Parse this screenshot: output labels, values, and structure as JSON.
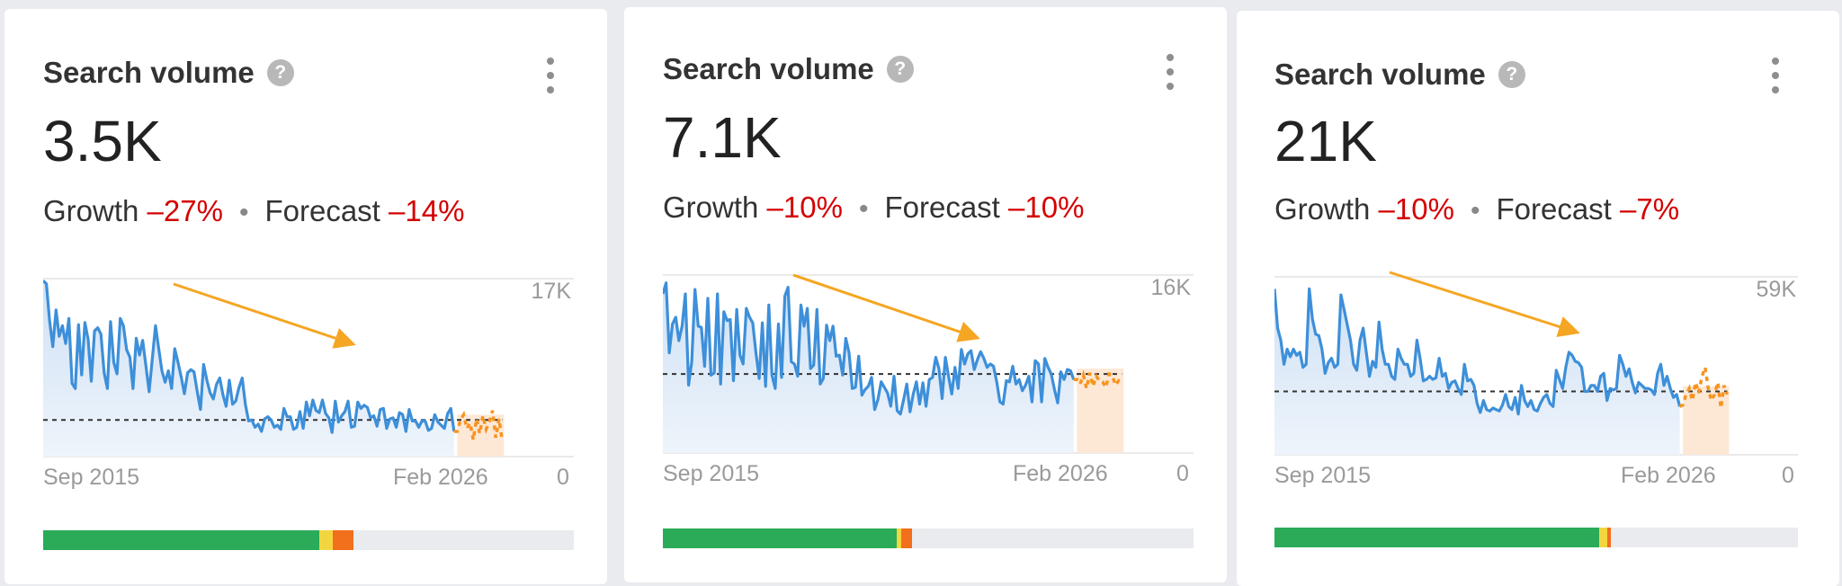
{
  "colors": {
    "line": "#3d8fd9",
    "area_top": "#cfe1f5",
    "area_bottom": "#eef4fb",
    "forecast_line": "#f7931e",
    "forecast_area": "#fde8d6",
    "trend_arrow": "#f5a623",
    "avg_line": "#333333",
    "grid": "#e3e3e3",
    "bar_green": "#2bab58",
    "bar_yellow": "#f3d63f",
    "bar_orange": "#f26f1c",
    "bar_bg": "#e9ebee"
  },
  "cards": [
    {
      "title": "Search volume",
      "help_icon": "?",
      "volume": "3.5K",
      "growth_label": "Growth",
      "growth_value": "–27%",
      "separator": "•",
      "forecast_label": "Forecast",
      "forecast_value": "–14%",
      "date_start": "Sep 2015",
      "date_end": "Feb 2026",
      "y_max_label": "17K",
      "y_min_label": "0",
      "intent_bar": [
        {
          "color": "green",
          "fraction": 0.52
        },
        {
          "color": "yellow",
          "fraction": 0.025
        },
        {
          "color": "orange",
          "fraction": 0.04
        }
      ]
    },
    {
      "title": "Search volume",
      "help_icon": "?",
      "volume": "7.1K",
      "growth_label": "Growth",
      "growth_value": "–10%",
      "separator": "•",
      "forecast_label": "Forecast",
      "forecast_value": "–10%",
      "date_start": "Sep 2015",
      "date_end": "Feb 2026",
      "y_max_label": "16K",
      "y_min_label": "0",
      "intent_bar": [
        {
          "color": "green",
          "fraction": 0.44
        },
        {
          "color": "yellow",
          "fraction": 0.01
        },
        {
          "color": "orange",
          "fraction": 0.02
        }
      ]
    },
    {
      "title": "Search volume",
      "help_icon": "?",
      "volume": "21K",
      "growth_label": "Growth",
      "growth_value": "–10%",
      "separator": "•",
      "forecast_label": "Forecast",
      "forecast_value": "–7%",
      "date_start": "Sep 2015",
      "date_end": "Feb 2026",
      "y_max_label": "59K",
      "y_min_label": "0",
      "intent_bar": [
        {
          "color": "green",
          "fraction": 0.62
        },
        {
          "color": "yellow",
          "fraction": 0.015
        },
        {
          "color": "orange",
          "fraction": 0.008
        }
      ]
    }
  ],
  "chart_data": [
    {
      "type": "area",
      "title": "Search volume",
      "x_start": "Sep 2015",
      "x_end": "Feb 2026",
      "ylim": [
        0,
        17000
      ],
      "y_tick_labels": [
        "0",
        "17K"
      ],
      "average": 3500,
      "grid": true,
      "series": [
        {
          "values": [
            16800,
            16500,
            13000,
            10500,
            14000,
            11500,
            12500,
            10800,
            13200,
            7000,
            6500,
            12600,
            7800,
            12800,
            11200,
            7200,
            12000,
            12300,
            11700,
            8000,
            6500,
            12900,
            9000,
            7900,
            13200,
            12500,
            10200,
            9500,
            6500,
            11300,
            9700,
            11100,
            8700,
            6200,
            9300,
            12500,
            10300,
            8200,
            7100,
            8200,
            6500,
            10300,
            9000,
            7600,
            6000,
            8000,
            8300,
            8100,
            6200,
            4500,
            8800,
            7300,
            6100,
            5500,
            6900,
            7500,
            5900,
            4800,
            7300,
            5000,
            5300,
            6600,
            7500,
            5000,
            3400,
            3500,
            2800,
            3100,
            2400,
            3600,
            3800,
            3500,
            2800,
            3000,
            2600,
            4600,
            3800,
            3800,
            2600,
            2800,
            4300,
            2700,
            5200,
            3900,
            5400,
            4400,
            4200,
            5400,
            4100,
            3700,
            2300,
            5300,
            3300,
            3900,
            4300,
            5300,
            2800,
            2900,
            5200,
            4600,
            4900,
            4700,
            3700,
            3900,
            2900,
            4500,
            4600,
            2700,
            3600,
            3700,
            2800,
            4200,
            4000,
            2400,
            4500,
            3400,
            3400,
            2800,
            3400,
            3400,
            2500,
            2700,
            4000,
            3300,
            3000,
            2700,
            4100,
            4600,
            2400
          ]
        },
        {
          "name": "forecast",
          "values": [
            2400,
            3500,
            4000,
            2700,
            3200,
            1600,
            3600,
            2200,
            3900,
            2600,
            3300,
            4400,
            1800,
            3600,
            1500
          ]
        }
      ]
    },
    {
      "type": "area",
      "title": "Search volume",
      "x_start": "Sep 2015",
      "x_end": "Feb 2026",
      "ylim": [
        0,
        16000
      ],
      "y_tick_labels": [
        "0",
        "16K"
      ],
      "average": 7100,
      "grid": true,
      "series": [
        {
          "values": [
            14300,
            15300,
            9000,
            11600,
            12200,
            10100,
            11400,
            14300,
            6100,
            8200,
            14700,
            11400,
            11300,
            7800,
            13900,
            7000,
            7200,
            14300,
            6200,
            12700,
            11900,
            12000,
            6500,
            12900,
            8800,
            8000,
            13000,
            12200,
            11700,
            9000,
            6700,
            11700,
            6000,
            13300,
            7000,
            5800,
            11600,
            6800,
            14100,
            14900,
            8200,
            8000,
            6900,
            13300,
            11400,
            13000,
            7600,
            7900,
            12900,
            6200,
            6700,
            11500,
            10100,
            11400,
            8700,
            8800,
            7000,
            10300,
            9000,
            5800,
            5900,
            8700,
            5200,
            5700,
            6000,
            6800,
            3900,
            4800,
            6400,
            5900,
            5400,
            4200,
            6900,
            3800,
            3500,
            4800,
            6200,
            3700,
            5300,
            6400,
            4400,
            6300,
            4200,
            6600,
            6800,
            8600,
            7600,
            4900,
            8600,
            6900,
            5300,
            7700,
            5800,
            9300,
            8000,
            8900,
            9200,
            7500,
            8400,
            9100,
            8500,
            7700,
            8000,
            7800,
            6400,
            4600,
            4400,
            6500,
            6400,
            7800,
            6200,
            6600,
            5600,
            6100,
            6900,
            4600,
            8300,
            8000,
            4600,
            8500,
            7700,
            7100,
            5700,
            4500,
            7300,
            6600,
            7500,
            7400,
            6600
          ]
        },
        {
          "name": "forecast",
          "values": [
            6600,
            6200,
            7000,
            5800,
            7200,
            6000,
            6900,
            6500,
            6400,
            5900,
            7100,
            7000,
            6100,
            6500,
            6300
          ]
        }
      ]
    },
    {
      "type": "area",
      "title": "Search volume",
      "x_start": "Sep 2015",
      "x_end": "Feb 2026",
      "ylim": [
        0,
        59000
      ],
      "y_tick_labels": [
        "0",
        "59K"
      ],
      "average": 21000,
      "grid": true,
      "series": [
        {
          "values": [
            55000,
            42000,
            38000,
            30000,
            35000,
            32500,
            35000,
            33000,
            34000,
            29000,
            30000,
            55000,
            45000,
            40000,
            39500,
            35000,
            27000,
            30500,
            32000,
            29000,
            30000,
            53000,
            48000,
            43000,
            38000,
            30000,
            28000,
            38000,
            42000,
            34000,
            26000,
            31000,
            29000,
            44000,
            35000,
            30000,
            30000,
            26000,
            25000,
            35000,
            32000,
            30000,
            30000,
            26000,
            27000,
            38000,
            32000,
            24500,
            25000,
            26000,
            25000,
            25500,
            32000,
            26000,
            27000,
            22000,
            24000,
            24500,
            22000,
            20000,
            30000,
            24500,
            25000,
            23000,
            17000,
            14000,
            18000,
            15000,
            14500,
            15500,
            15000,
            14500,
            16500,
            20000,
            16000,
            15000,
            19000,
            13500,
            23000,
            18000,
            16000,
            18000,
            15000,
            14500,
            17000,
            19000,
            20000,
            17000,
            16000,
            28000,
            25000,
            22000,
            29000,
            34000,
            33000,
            31000,
            30500,
            29000,
            21000,
            21000,
            23000,
            23000,
            21000,
            26000,
            27000,
            18000,
            22000,
            21500,
            22000,
            33000,
            30000,
            26000,
            28500,
            24000,
            20500,
            24000,
            23000,
            22000,
            22000,
            21500,
            20000,
            27000,
            30000,
            23000,
            26000,
            22000,
            19000,
            20000,
            16000
          ]
        },
        {
          "name": "forecast",
          "values": [
            16500,
            20000,
            22000,
            18000,
            24000,
            20500,
            26000,
            29000,
            22000,
            18000,
            20000,
            24000,
            15500,
            23000,
            20000
          ]
        }
      ]
    }
  ]
}
